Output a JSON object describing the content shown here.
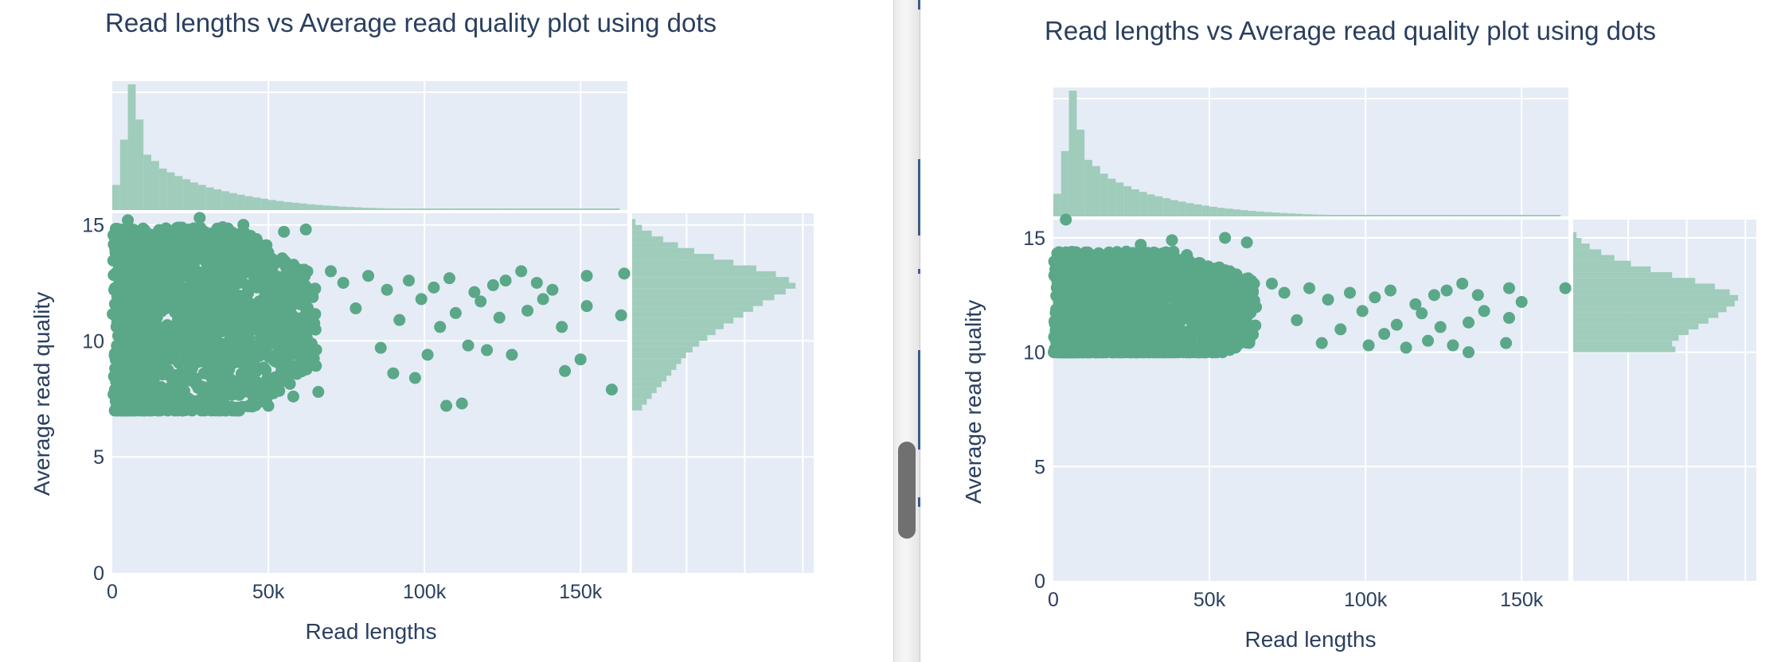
{
  "colors": {
    "plot_bg": "#e5ecf6",
    "grid": "#ffffff",
    "marker": "#5aa888",
    "histogram": "#9fccbb",
    "text": "#2a3f5f"
  },
  "icons": {
    "splitter_handle": "grip-handle-icon"
  },
  "chart_data": [
    {
      "type": "scatter",
      "title": "Read lengths vs Average read quality plot using dots",
      "xlabel": "Read lengths",
      "ylabel": "Average read quality",
      "x_ticks": [
        "0",
        "50k",
        "100k",
        "150k"
      ],
      "y_ticks": [
        "0",
        "5",
        "10",
        "15"
      ],
      "xlim": [
        0,
        165000
      ],
      "ylim": [
        0,
        15.5
      ],
      "marginal_x": "histogram",
      "marginal_y": "histogram",
      "grid": true,
      "points": [
        {
          "x": 70000,
          "y": 13.0
        },
        {
          "x": 74000,
          "y": 12.5
        },
        {
          "x": 78000,
          "y": 11.4
        },
        {
          "x": 82000,
          "y": 12.8
        },
        {
          "x": 86000,
          "y": 9.7
        },
        {
          "x": 88000,
          "y": 12.2
        },
        {
          "x": 90000,
          "y": 8.6
        },
        {
          "x": 92000,
          "y": 10.9
        },
        {
          "x": 95000,
          "y": 12.6
        },
        {
          "x": 97000,
          "y": 8.4
        },
        {
          "x": 99000,
          "y": 11.8
        },
        {
          "x": 101000,
          "y": 9.4
        },
        {
          "x": 103000,
          "y": 12.3
        },
        {
          "x": 105000,
          "y": 10.6
        },
        {
          "x": 107000,
          "y": 7.2
        },
        {
          "x": 108000,
          "y": 12.7
        },
        {
          "x": 110000,
          "y": 11.2
        },
        {
          "x": 112000,
          "y": 7.3
        },
        {
          "x": 114000,
          "y": 9.8
        },
        {
          "x": 116000,
          "y": 12.1
        },
        {
          "x": 118000,
          "y": 11.7
        },
        {
          "x": 120000,
          "y": 9.6
        },
        {
          "x": 122000,
          "y": 12.4
        },
        {
          "x": 124000,
          "y": 11.0
        },
        {
          "x": 126000,
          "y": 12.6
        },
        {
          "x": 128000,
          "y": 9.4
        },
        {
          "x": 131000,
          "y": 13.0
        },
        {
          "x": 133000,
          "y": 11.3
        },
        {
          "x": 136000,
          "y": 12.5
        },
        {
          "x": 138000,
          "y": 11.8
        },
        {
          "x": 141000,
          "y": 12.2
        },
        {
          "x": 144000,
          "y": 10.6
        },
        {
          "x": 145000,
          "y": 8.7
        },
        {
          "x": 150000,
          "y": 9.2
        },
        {
          "x": 152000,
          "y": 11.5
        },
        {
          "x": 152000,
          "y": 12.8
        },
        {
          "x": 160000,
          "y": 7.9
        },
        {
          "x": 163000,
          "y": 11.1
        },
        {
          "x": 164000,
          "y": 12.9
        },
        {
          "x": 50000,
          "y": 7.2
        },
        {
          "x": 58000,
          "y": 7.6
        },
        {
          "x": 62000,
          "y": 14.8
        },
        {
          "x": 42000,
          "y": 15.0
        },
        {
          "x": 28000,
          "y": 15.3
        },
        {
          "x": 5000,
          "y": 15.2
        },
        {
          "x": 35000,
          "y": 14.6
        },
        {
          "x": 55000,
          "y": 14.7
        },
        {
          "x": 66000,
          "y": 7.8
        },
        {
          "x": 45000,
          "y": 7.3
        }
      ],
      "x_histogram": [
        {
          "x": 0,
          "count": 200
        },
        {
          "x": 2500,
          "count": 560
        },
        {
          "x": 5000,
          "count": 1000
        },
        {
          "x": 7500,
          "count": 720
        },
        {
          "x": 10000,
          "count": 440
        },
        {
          "x": 12500,
          "count": 390
        },
        {
          "x": 15000,
          "count": 330
        },
        {
          "x": 17500,
          "count": 300
        },
        {
          "x": 20000,
          "count": 270
        },
        {
          "x": 22500,
          "count": 245
        },
        {
          "x": 25000,
          "count": 220
        },
        {
          "x": 27500,
          "count": 200
        },
        {
          "x": 30000,
          "count": 180
        },
        {
          "x": 32500,
          "count": 165
        },
        {
          "x": 35000,
          "count": 150
        },
        {
          "x": 37500,
          "count": 135
        },
        {
          "x": 40000,
          "count": 122
        },
        {
          "x": 42500,
          "count": 110
        },
        {
          "x": 45000,
          "count": 100
        },
        {
          "x": 47500,
          "count": 90
        },
        {
          "x": 50000,
          "count": 80
        },
        {
          "x": 52500,
          "count": 72
        },
        {
          "x": 55000,
          "count": 64
        },
        {
          "x": 57500,
          "count": 58
        },
        {
          "x": 60000,
          "count": 52
        },
        {
          "x": 62500,
          "count": 46
        },
        {
          "x": 65000,
          "count": 41
        },
        {
          "x": 67500,
          "count": 36
        },
        {
          "x": 70000,
          "count": 32
        },
        {
          "x": 72500,
          "count": 28
        },
        {
          "x": 75000,
          "count": 25
        },
        {
          "x": 77500,
          "count": 22
        },
        {
          "x": 80000,
          "count": 19
        },
        {
          "x": 82500,
          "count": 17
        },
        {
          "x": 85000,
          "count": 15
        },
        {
          "x": 87500,
          "count": 13
        },
        {
          "x": 90000,
          "count": 11
        },
        {
          "x": 92500,
          "count": 10
        },
        {
          "x": 95000,
          "count": 9
        },
        {
          "x": 97500,
          "count": 8
        },
        {
          "x": 100000,
          "count": 7
        },
        {
          "x": 105000,
          "count": 6
        },
        {
          "x": 110000,
          "count": 5
        },
        {
          "x": 115000,
          "count": 4
        },
        {
          "x": 120000,
          "count": 4
        },
        {
          "x": 125000,
          "count": 3
        },
        {
          "x": 130000,
          "count": 3
        },
        {
          "x": 140000,
          "count": 2
        },
        {
          "x": 150000,
          "count": 2
        },
        {
          "x": 160000,
          "count": 2
        }
      ],
      "y_histogram": [
        {
          "y": 7.0,
          "count": 60
        },
        {
          "y": 7.25,
          "count": 90
        },
        {
          "y": 7.5,
          "count": 120
        },
        {
          "y": 7.75,
          "count": 150
        },
        {
          "y": 8.0,
          "count": 180
        },
        {
          "y": 8.25,
          "count": 210
        },
        {
          "y": 8.5,
          "count": 240
        },
        {
          "y": 8.75,
          "count": 270
        },
        {
          "y": 9.0,
          "count": 300
        },
        {
          "y": 9.25,
          "count": 330
        },
        {
          "y": 9.5,
          "count": 370
        },
        {
          "y": 9.75,
          "count": 410
        },
        {
          "y": 10.0,
          "count": 460
        },
        {
          "y": 10.25,
          "count": 510
        },
        {
          "y": 10.5,
          "count": 560
        },
        {
          "y": 10.75,
          "count": 620
        },
        {
          "y": 11.0,
          "count": 680
        },
        {
          "y": 11.25,
          "count": 740
        },
        {
          "y": 11.5,
          "count": 800
        },
        {
          "y": 11.75,
          "count": 870
        },
        {
          "y": 12.0,
          "count": 940
        },
        {
          "y": 12.25,
          "count": 1000
        },
        {
          "y": 12.5,
          "count": 960
        },
        {
          "y": 12.75,
          "count": 880
        },
        {
          "y": 13.0,
          "count": 760
        },
        {
          "y": 13.25,
          "count": 620
        },
        {
          "y": 13.5,
          "count": 500
        },
        {
          "y": 13.75,
          "count": 380
        },
        {
          "y": 14.0,
          "count": 280
        },
        {
          "y": 14.25,
          "count": 190
        },
        {
          "y": 14.5,
          "count": 120
        },
        {
          "y": 14.75,
          "count": 60
        },
        {
          "y": 15.0,
          "count": 20
        }
      ]
    },
    {
      "type": "scatter",
      "title": "Read lengths vs Average read quality plot using dots",
      "xlabel": "Read lengths",
      "ylabel": "Average read quality",
      "x_ticks": [
        "0",
        "50k",
        "100k",
        "150k"
      ],
      "y_ticks": [
        "0",
        "5",
        "10",
        "15"
      ],
      "xlim": [
        0,
        165000
      ],
      "ylim": [
        0,
        15.8
      ],
      "marginal_x": "histogram",
      "marginal_y": "histogram",
      "grid": true,
      "points": [
        {
          "x": 70000,
          "y": 13.0
        },
        {
          "x": 74000,
          "y": 12.6
        },
        {
          "x": 78000,
          "y": 11.4
        },
        {
          "x": 82000,
          "y": 12.8
        },
        {
          "x": 86000,
          "y": 10.4
        },
        {
          "x": 88000,
          "y": 12.3
        },
        {
          "x": 92000,
          "y": 11.0
        },
        {
          "x": 95000,
          "y": 12.6
        },
        {
          "x": 99000,
          "y": 11.8
        },
        {
          "x": 101000,
          "y": 10.3
        },
        {
          "x": 103000,
          "y": 12.4
        },
        {
          "x": 106000,
          "y": 10.8
        },
        {
          "x": 108000,
          "y": 12.7
        },
        {
          "x": 110000,
          "y": 11.2
        },
        {
          "x": 113000,
          "y": 10.2
        },
        {
          "x": 116000,
          "y": 12.1
        },
        {
          "x": 118000,
          "y": 11.7
        },
        {
          "x": 120000,
          "y": 10.5
        },
        {
          "x": 122000,
          "y": 12.5
        },
        {
          "x": 124000,
          "y": 11.1
        },
        {
          "x": 126000,
          "y": 12.7
        },
        {
          "x": 128000,
          "y": 10.3
        },
        {
          "x": 131000,
          "y": 13.0
        },
        {
          "x": 133000,
          "y": 11.3
        },
        {
          "x": 133000,
          "y": 10.0
        },
        {
          "x": 136000,
          "y": 12.5
        },
        {
          "x": 138000,
          "y": 11.8
        },
        {
          "x": 145000,
          "y": 10.4
        },
        {
          "x": 146000,
          "y": 11.5
        },
        {
          "x": 146000,
          "y": 12.8
        },
        {
          "x": 150000,
          "y": 12.2
        },
        {
          "x": 164000,
          "y": 12.8
        },
        {
          "x": 55000,
          "y": 15.0
        },
        {
          "x": 38000,
          "y": 14.9
        },
        {
          "x": 62000,
          "y": 14.8
        },
        {
          "x": 28000,
          "y": 14.7
        },
        {
          "x": 4000,
          "y": 15.8
        }
      ],
      "x_histogram": [
        {
          "x": 0,
          "count": 180
        },
        {
          "x": 2500,
          "count": 520
        },
        {
          "x": 5000,
          "count": 1000
        },
        {
          "x": 7500,
          "count": 690
        },
        {
          "x": 10000,
          "count": 450
        },
        {
          "x": 12500,
          "count": 400
        },
        {
          "x": 15000,
          "count": 340
        },
        {
          "x": 17500,
          "count": 300
        },
        {
          "x": 20000,
          "count": 270
        },
        {
          "x": 22500,
          "count": 240
        },
        {
          "x": 25000,
          "count": 215
        },
        {
          "x": 27500,
          "count": 195
        },
        {
          "x": 30000,
          "count": 175
        },
        {
          "x": 32500,
          "count": 160
        },
        {
          "x": 35000,
          "count": 145
        },
        {
          "x": 37500,
          "count": 130
        },
        {
          "x": 40000,
          "count": 118
        },
        {
          "x": 42500,
          "count": 106
        },
        {
          "x": 45000,
          "count": 96
        },
        {
          "x": 47500,
          "count": 86
        },
        {
          "x": 50000,
          "count": 77
        },
        {
          "x": 52500,
          "count": 69
        },
        {
          "x": 55000,
          "count": 62
        },
        {
          "x": 57500,
          "count": 56
        },
        {
          "x": 60000,
          "count": 50
        },
        {
          "x": 62500,
          "count": 44
        },
        {
          "x": 65000,
          "count": 39
        },
        {
          "x": 67500,
          "count": 35
        },
        {
          "x": 70000,
          "count": 31
        },
        {
          "x": 72500,
          "count": 27
        },
        {
          "x": 75000,
          "count": 24
        },
        {
          "x": 77500,
          "count": 21
        },
        {
          "x": 80000,
          "count": 18
        },
        {
          "x": 82500,
          "count": 16
        },
        {
          "x": 85000,
          "count": 14
        },
        {
          "x": 87500,
          "count": 12
        },
        {
          "x": 90000,
          "count": 11
        },
        {
          "x": 92500,
          "count": 9
        },
        {
          "x": 95000,
          "count": 8
        },
        {
          "x": 97500,
          "count": 7
        },
        {
          "x": 100000,
          "count": 6
        },
        {
          "x": 105000,
          "count": 5
        },
        {
          "x": 110000,
          "count": 5
        },
        {
          "x": 115000,
          "count": 4
        },
        {
          "x": 120000,
          "count": 3
        },
        {
          "x": 125000,
          "count": 3
        },
        {
          "x": 130000,
          "count": 2
        },
        {
          "x": 145000,
          "count": 2
        },
        {
          "x": 160000,
          "count": 2
        }
      ],
      "y_histogram": [
        {
          "y": 10.0,
          "count": 620
        },
        {
          "y": 10.25,
          "count": 600
        },
        {
          "y": 10.5,
          "count": 640
        },
        {
          "y": 10.75,
          "count": 700
        },
        {
          "y": 11.0,
          "count": 760
        },
        {
          "y": 11.25,
          "count": 820
        },
        {
          "y": 11.5,
          "count": 880
        },
        {
          "y": 11.75,
          "count": 930
        },
        {
          "y": 12.0,
          "count": 980
        },
        {
          "y": 12.25,
          "count": 1000
        },
        {
          "y": 12.5,
          "count": 950
        },
        {
          "y": 12.75,
          "count": 860
        },
        {
          "y": 13.0,
          "count": 740
        },
        {
          "y": 13.25,
          "count": 600
        },
        {
          "y": 13.5,
          "count": 470
        },
        {
          "y": 13.75,
          "count": 350
        },
        {
          "y": 14.0,
          "count": 250
        },
        {
          "y": 14.25,
          "count": 170
        },
        {
          "y": 14.5,
          "count": 100
        },
        {
          "y": 14.75,
          "count": 50
        },
        {
          "y": 15.0,
          "count": 20
        }
      ]
    }
  ]
}
